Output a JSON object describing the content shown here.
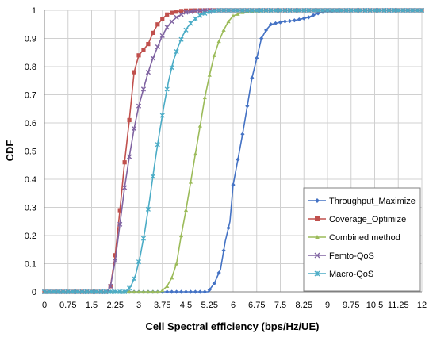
{
  "chart_data": {
    "type": "line",
    "title": "",
    "xlabel": "Cell Spectral efficiency (bps/Hz/UE)",
    "ylabel": "CDF",
    "xlim": [
      0,
      12
    ],
    "ylim": [
      0,
      1
    ],
    "x_ticks": [
      "0",
      "0.75",
      "1.5",
      "2.25",
      "3",
      "3.75",
      "4.5",
      "5.25",
      "6",
      "6.75",
      "7.5",
      "8.25",
      "9",
      "9.75",
      "10.5",
      "11.25",
      "12"
    ],
    "y_ticks": [
      "0",
      "0.1",
      "0.2",
      "0.3",
      "0.4",
      "0.5",
      "0.6",
      "0.7",
      "0.8",
      "0.9",
      "1"
    ],
    "grid": true,
    "legend_position": "bottom-right",
    "series": [
      {
        "name": "Throughput_Maximize",
        "color": "#4472C4",
        "marker": "diamond",
        "points": [
          [
            0,
            0
          ],
          [
            5.0,
            0
          ],
          [
            5.2,
            0.0
          ],
          [
            5.4,
            0.03
          ],
          [
            5.6,
            0.08
          ],
          [
            5.75,
            0.18
          ],
          [
            5.9,
            0.25
          ],
          [
            6.0,
            0.38
          ],
          [
            6.15,
            0.47
          ],
          [
            6.3,
            0.56
          ],
          [
            6.45,
            0.66
          ],
          [
            6.6,
            0.76
          ],
          [
            6.75,
            0.83
          ],
          [
            6.9,
            0.9
          ],
          [
            7.05,
            0.93
          ],
          [
            7.2,
            0.95
          ],
          [
            7.4,
            0.955
          ],
          [
            7.6,
            0.96
          ],
          [
            7.8,
            0.962
          ],
          [
            8.0,
            0.965
          ],
          [
            8.2,
            0.97
          ],
          [
            8.4,
            0.975
          ],
          [
            8.6,
            0.985
          ],
          [
            8.8,
            0.993
          ],
          [
            9.0,
            0.997
          ],
          [
            9.5,
            0.999
          ],
          [
            10,
            1.0
          ],
          [
            12,
            1.0
          ]
        ]
      },
      {
        "name": "Coverage_Optimize",
        "color": "#C0504D",
        "marker": "square",
        "points": [
          [
            0,
            0
          ],
          [
            2.0,
            0
          ],
          [
            2.1,
            0.02
          ],
          [
            2.25,
            0.13
          ],
          [
            2.4,
            0.29
          ],
          [
            2.55,
            0.46
          ],
          [
            2.7,
            0.61
          ],
          [
            2.85,
            0.78
          ],
          [
            3.0,
            0.84
          ],
          [
            3.15,
            0.86
          ],
          [
            3.3,
            0.88
          ],
          [
            3.45,
            0.92
          ],
          [
            3.6,
            0.95
          ],
          [
            3.75,
            0.97
          ],
          [
            3.9,
            0.985
          ],
          [
            4.1,
            0.993
          ],
          [
            4.3,
            0.997
          ],
          [
            4.5,
            0.999
          ],
          [
            5.0,
            1.0
          ],
          [
            12,
            1.0
          ]
        ]
      },
      {
        "name": "Combined method",
        "color": "#9BBB59",
        "marker": "triangle",
        "points": [
          [
            0,
            0
          ],
          [
            3.5,
            0
          ],
          [
            3.7,
            0.0
          ],
          [
            3.9,
            0.02
          ],
          [
            4.05,
            0.05
          ],
          [
            4.2,
            0.1
          ],
          [
            4.35,
            0.2
          ],
          [
            4.5,
            0.29
          ],
          [
            4.65,
            0.39
          ],
          [
            4.8,
            0.49
          ],
          [
            4.95,
            0.59
          ],
          [
            5.1,
            0.69
          ],
          [
            5.25,
            0.77
          ],
          [
            5.4,
            0.84
          ],
          [
            5.55,
            0.89
          ],
          [
            5.7,
            0.93
          ],
          [
            5.85,
            0.96
          ],
          [
            6.0,
            0.98
          ],
          [
            6.3,
            0.993
          ],
          [
            6.75,
            0.998
          ],
          [
            7.5,
            1.0
          ],
          [
            12,
            1.0
          ]
        ]
      },
      {
        "name": "Femto-QoS",
        "color": "#8064A2",
        "marker": "x",
        "points": [
          [
            0,
            0
          ],
          [
            2.0,
            0
          ],
          [
            2.1,
            0.02
          ],
          [
            2.25,
            0.11
          ],
          [
            2.4,
            0.24
          ],
          [
            2.55,
            0.37
          ],
          [
            2.7,
            0.48
          ],
          [
            2.85,
            0.58
          ],
          [
            3.0,
            0.66
          ],
          [
            3.15,
            0.72
          ],
          [
            3.3,
            0.78
          ],
          [
            3.45,
            0.83
          ],
          [
            3.6,
            0.87
          ],
          [
            3.75,
            0.91
          ],
          [
            3.9,
            0.94
          ],
          [
            4.05,
            0.96
          ],
          [
            4.2,
            0.975
          ],
          [
            4.35,
            0.985
          ],
          [
            4.5,
            0.993
          ],
          [
            4.8,
            0.998
          ],
          [
            5.25,
            1.0
          ],
          [
            12,
            1.0
          ]
        ]
      },
      {
        "name": "Macro-QoS",
        "color": "#4BACC6",
        "marker": "star",
        "points": [
          [
            0,
            0
          ],
          [
            2.6,
            0
          ],
          [
            2.75,
            0.02
          ],
          [
            2.9,
            0.06
          ],
          [
            3.05,
            0.13
          ],
          [
            3.2,
            0.22
          ],
          [
            3.35,
            0.33
          ],
          [
            3.5,
            0.45
          ],
          [
            3.65,
            0.56
          ],
          [
            3.8,
            0.66
          ],
          [
            3.95,
            0.75
          ],
          [
            4.1,
            0.82
          ],
          [
            4.25,
            0.87
          ],
          [
            4.4,
            0.91
          ],
          [
            4.55,
            0.94
          ],
          [
            4.7,
            0.96
          ],
          [
            4.85,
            0.975
          ],
          [
            5.0,
            0.985
          ],
          [
            5.25,
            0.995
          ],
          [
            5.5,
            1.0
          ],
          [
            12,
            1.0
          ]
        ]
      }
    ]
  }
}
